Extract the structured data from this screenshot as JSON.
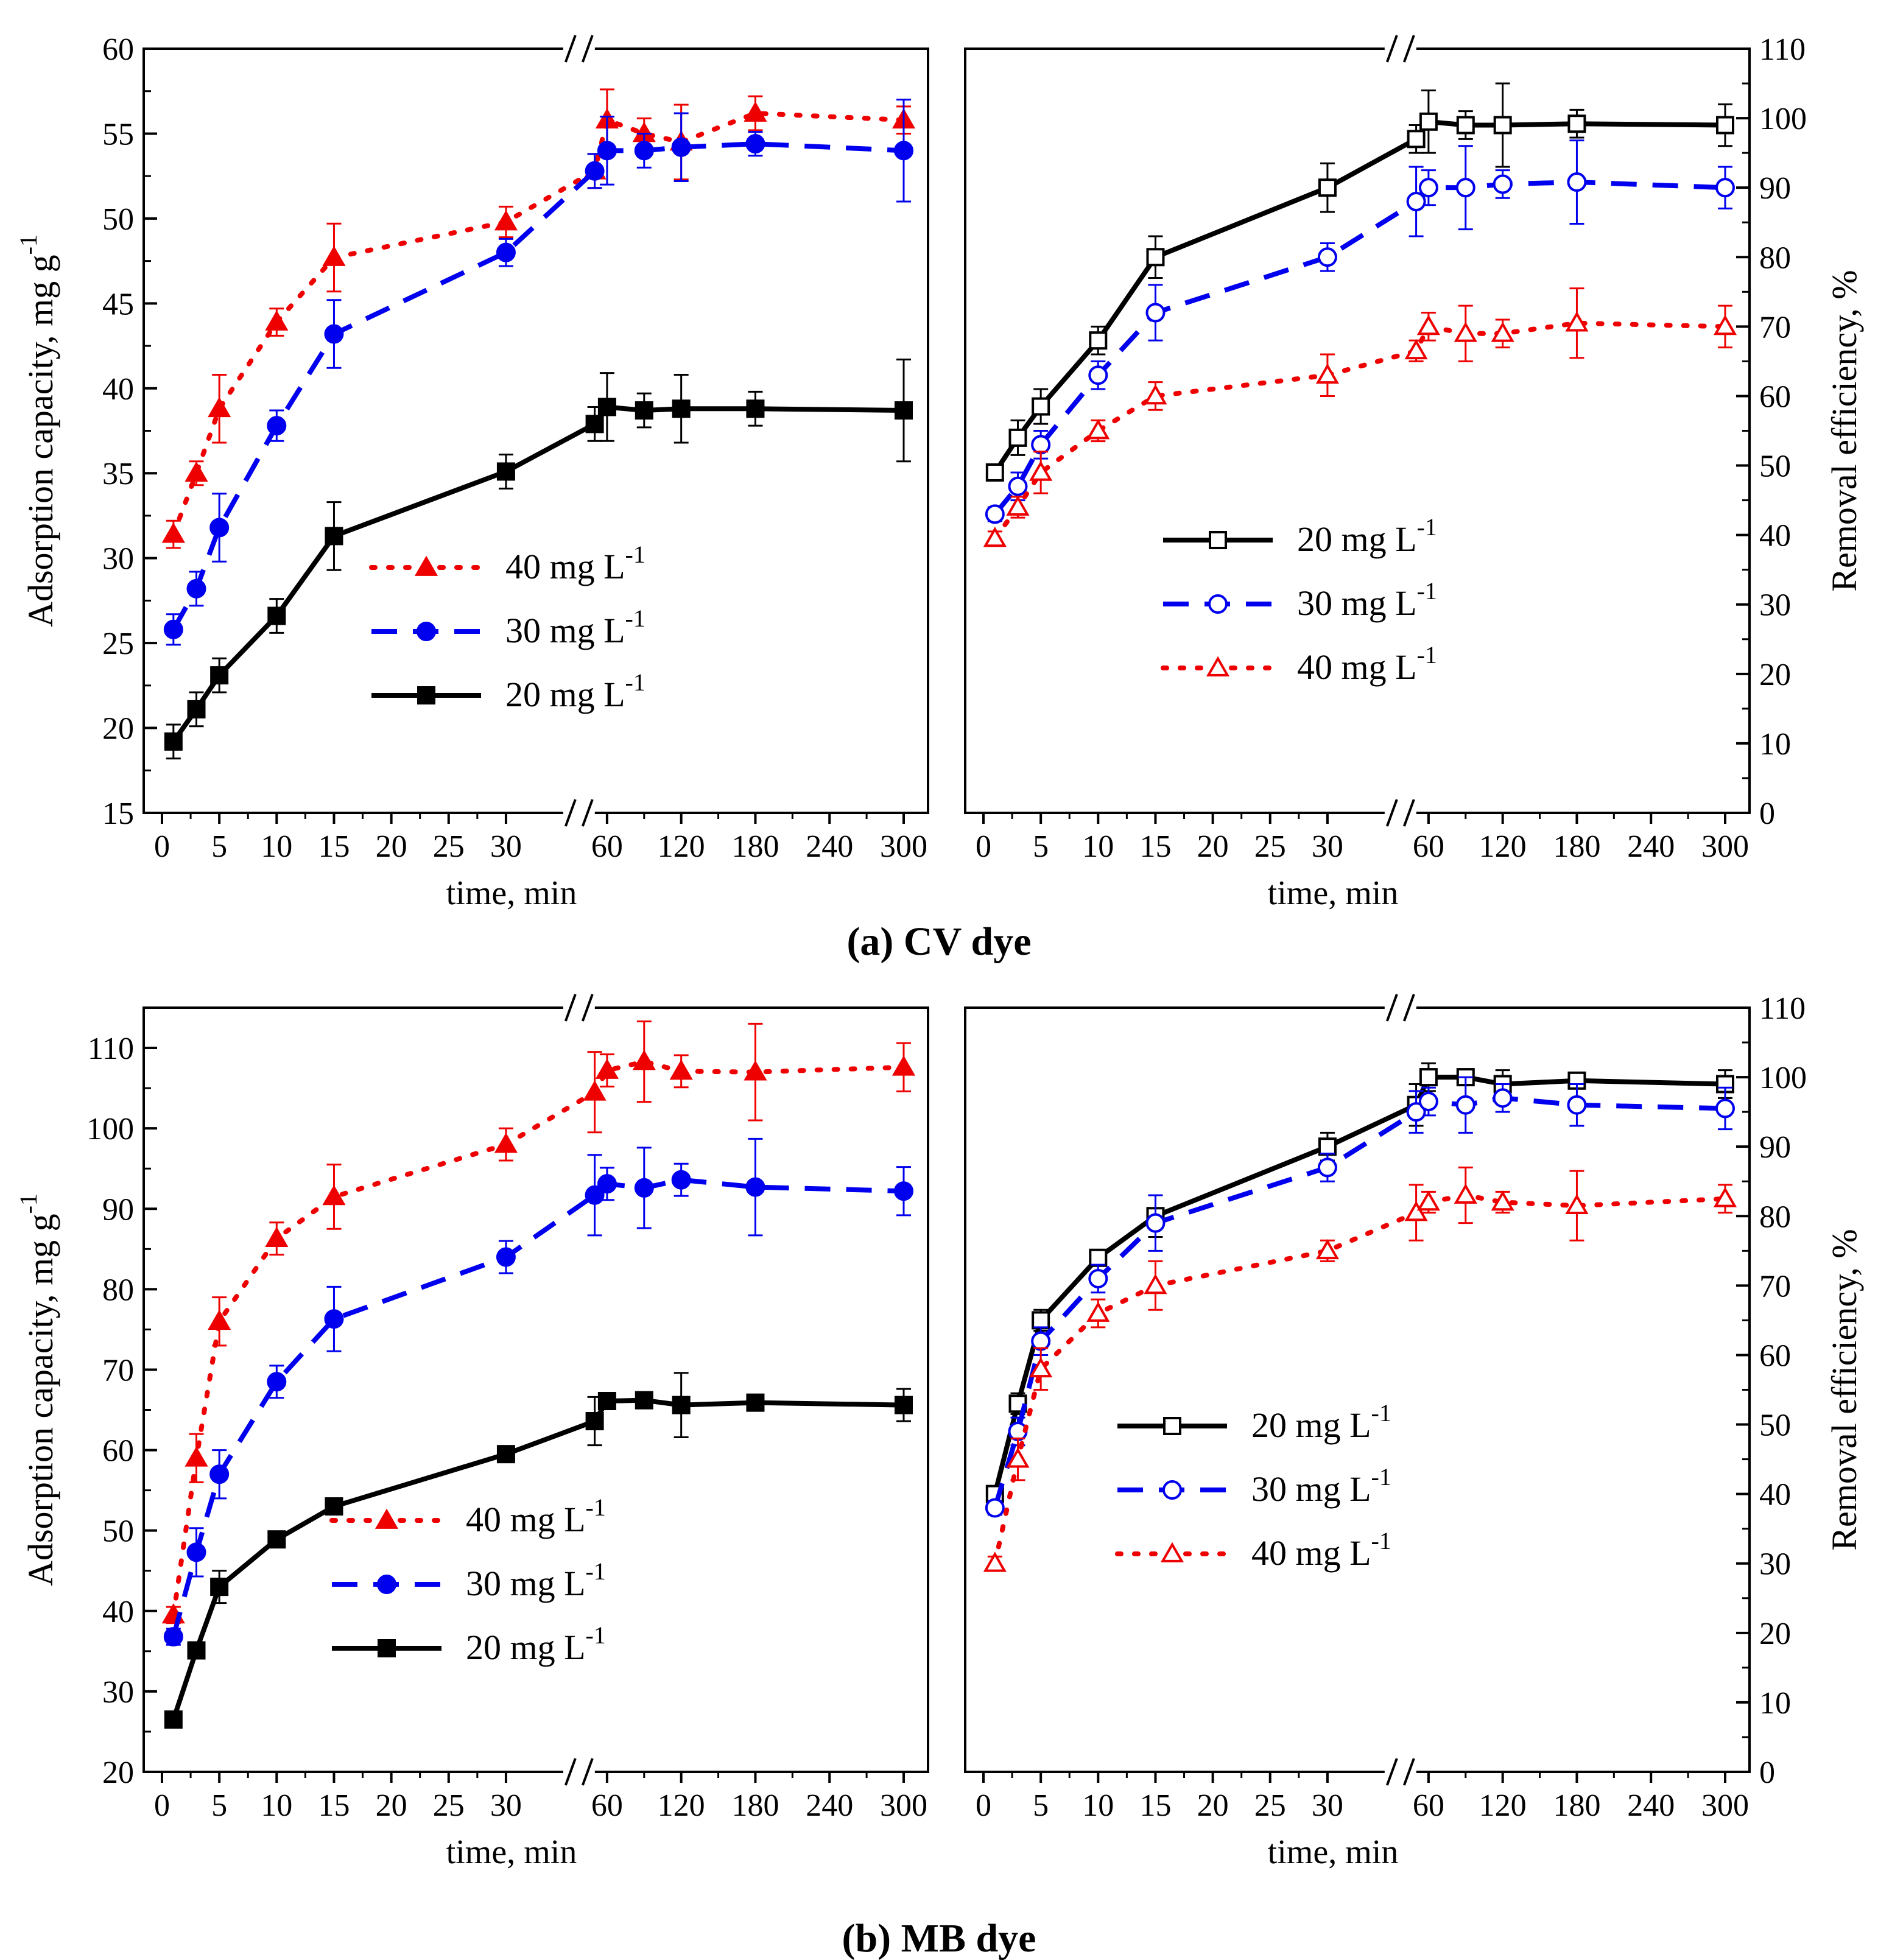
{
  "figure": {
    "caption_a": "(a) CV dye",
    "caption_b": "(b) MB dye"
  },
  "axes": {
    "left_ylabel": "Adsorption capacity, mg g",
    "left_ylabel_sup": "-1",
    "right_ylabel": "Removal efficiency, %",
    "xlabel": "time, min",
    "x_ticks_left_segment": [
      "0",
      "5",
      "10",
      "15",
      "20",
      "25",
      "30"
    ],
    "x_ticks_right_segment": [
      "60",
      "120",
      "180",
      "240",
      "300"
    ]
  },
  "legend": {
    "label_20": "20 mg L",
    "label_30": "30 mg L",
    "label_40": "40 mg L",
    "sup": "-1"
  },
  "colors": {
    "s20": "#000000",
    "s30": "#0000ee",
    "s40": "#ee0000"
  },
  "chart_data": [
    {
      "id": "cv_capacity",
      "type": "line",
      "title": "",
      "xlabel": "time, min",
      "ylabel": "Adsorption capacity, mg g-1",
      "ylim": [
        15,
        60
      ],
      "yticks": [
        15,
        20,
        25,
        30,
        35,
        40,
        45,
        50,
        55,
        60
      ],
      "x_break": [
        35,
        50
      ],
      "x_segments": [
        [
          0,
          35
        ],
        [
          50,
          300
        ]
      ],
      "legend_order": [
        "40 mg L-1",
        "30 mg L-1",
        "20 mg L-1"
      ],
      "legend_placement": "center-right",
      "series": [
        {
          "name": "40 mg L-1",
          "marker": "triangle",
          "filled": true,
          "style": "dotted",
          "color": "#ee0000",
          "x": [
            1,
            3,
            5,
            10,
            15,
            30,
            50,
            60,
            90,
            120,
            180,
            300
          ],
          "y": [
            31.4,
            35.0,
            38.8,
            43.9,
            47.7,
            49.8,
            52.8,
            55.8,
            55.0,
            54.5,
            56.2,
            55.8
          ],
          "err": [
            0.8,
            0.7,
            2.0,
            0.8,
            2.0,
            0.9,
            1.0,
            1.8,
            0.9,
            2.2,
            1.0,
            0.8
          ]
        },
        {
          "name": "30 mg L-1",
          "marker": "circle",
          "filled": true,
          "style": "dashed",
          "color": "#0000ee",
          "x": [
            1,
            3,
            5,
            10,
            15,
            30,
            50,
            60,
            90,
            120,
            180,
            300
          ],
          "y": [
            25.8,
            28.2,
            31.8,
            37.8,
            43.2,
            48.0,
            52.8,
            54.0,
            54.0,
            54.2,
            54.4,
            54.0
          ],
          "err": [
            0.9,
            1.0,
            2.0,
            0.9,
            2.0,
            0.8,
            1.0,
            2.0,
            1.0,
            2.0,
            0.7,
            3.0
          ]
        },
        {
          "name": "20 mg L-1",
          "marker": "square",
          "filled": true,
          "style": "solid",
          "color": "#000000",
          "x": [
            1,
            3,
            5,
            10,
            15,
            30,
            50,
            60,
            90,
            120,
            180,
            300
          ],
          "y": [
            19.2,
            21.1,
            23.1,
            26.6,
            31.3,
            35.1,
            37.9,
            38.9,
            38.7,
            38.8,
            38.8,
            38.7
          ],
          "err": [
            1.0,
            1.0,
            1.0,
            1.0,
            2.0,
            1.0,
            1.0,
            2.0,
            1.0,
            2.0,
            1.0,
            3.0
          ]
        }
      ]
    },
    {
      "id": "cv_removal",
      "type": "line",
      "title": "",
      "xlabel": "time, min",
      "ylabel": "Removal efficiency, %",
      "ylim": [
        0,
        110
      ],
      "yticks": [
        0,
        10,
        20,
        30,
        40,
        50,
        60,
        70,
        80,
        90,
        100,
        110
      ],
      "x_break": [
        35,
        50
      ],
      "x_segments": [
        [
          0,
          35
        ],
        [
          50,
          300
        ]
      ],
      "legend_order": [
        "20 mg L-1",
        "30 mg L-1",
        "40 mg L-1"
      ],
      "legend_placement": "center-right",
      "series": [
        {
          "name": "20 mg L-1",
          "marker": "square",
          "filled": false,
          "style": "solid",
          "color": "#000000",
          "x": [
            1,
            3,
            5,
            10,
            15,
            30,
            50,
            60,
            90,
            120,
            180,
            300
          ],
          "y": [
            49,
            54,
            58.5,
            68,
            80,
            90,
            97,
            99.5,
            99,
            99,
            99.2,
            99
          ],
          "err": [
            1.0,
            2.5,
            2.5,
            2.0,
            3.0,
            3.5,
            2.0,
            4.5,
            2.0,
            6.0,
            2.0,
            3.0
          ]
        },
        {
          "name": "30 mg L-1",
          "marker": "circle",
          "filled": false,
          "style": "dashed",
          "color": "#0000ee",
          "x": [
            1,
            3,
            5,
            10,
            15,
            30,
            50,
            60,
            90,
            120,
            180,
            300
          ],
          "y": [
            43,
            47,
            53,
            63,
            72,
            80,
            88,
            90,
            90,
            90.5,
            90.8,
            90
          ],
          "err": [
            1.0,
            2.0,
            2.0,
            2.0,
            4.0,
            2.0,
            5.0,
            2.5,
            6.0,
            2.0,
            6.0,
            3.0
          ]
        },
        {
          "name": "40 mg L-1",
          "marker": "triangle",
          "filled": false,
          "style": "dotted",
          "color": "#ee0000",
          "x": [
            1,
            3,
            5,
            10,
            15,
            30,
            50,
            60,
            90,
            120,
            180,
            300
          ],
          "y": [
            39.5,
            44,
            49,
            55,
            60,
            63,
            66.5,
            70,
            69,
            69,
            70.5,
            70
          ],
          "err": [
            1.0,
            1.5,
            3.0,
            1.5,
            2.0,
            3.0,
            1.5,
            2.0,
            4.0,
            2.0,
            5.0,
            3.0
          ]
        }
      ]
    },
    {
      "id": "mb_capacity",
      "type": "line",
      "title": "",
      "xlabel": "time, min",
      "ylabel": "Adsorption capacity, mg g-1",
      "ylim": [
        20,
        115
      ],
      "yticks": [
        20,
        30,
        40,
        50,
        60,
        70,
        80,
        90,
        100,
        110
      ],
      "x_break": [
        35,
        50
      ],
      "x_segments": [
        [
          0,
          35
        ],
        [
          50,
          300
        ]
      ],
      "legend_order": [
        "40 mg L-1",
        "30 mg L-1",
        "20 mg L-1"
      ],
      "legend_placement": "center-right",
      "series": [
        {
          "name": "40 mg L-1",
          "marker": "triangle",
          "filled": true,
          "style": "dotted",
          "color": "#ee0000",
          "x": [
            1,
            3,
            5,
            10,
            15,
            30,
            50,
            60,
            90,
            120,
            180,
            300
          ],
          "y": [
            39.5,
            59,
            76,
            86.3,
            91.5,
            98,
            104.5,
            107.2,
            108.3,
            107.1,
            107,
            107.6
          ],
          "err": [
            1.0,
            3.0,
            3.0,
            2.0,
            4.0,
            2.0,
            5.0,
            2.0,
            5.0,
            2.0,
            6.0,
            3.0
          ]
        },
        {
          "name": "30 mg L-1",
          "marker": "circle",
          "filled": true,
          "style": "dashed",
          "color": "#0000ee",
          "x": [
            1,
            3,
            5,
            10,
            15,
            30,
            50,
            60,
            90,
            120,
            180,
            300
          ],
          "y": [
            36.8,
            47.3,
            57,
            68.5,
            76.3,
            84,
            91.7,
            93.1,
            92.6,
            93.6,
            92.7,
            92.2
          ],
          "err": [
            1.0,
            3.0,
            3.0,
            2.0,
            4.0,
            2.0,
            5.0,
            2.0,
            5.0,
            2.0,
            6.0,
            3.0
          ]
        },
        {
          "name": "20 mg L-1",
          "marker": "square",
          "filled": true,
          "style": "solid",
          "color": "#000000",
          "x": [
            1,
            3,
            5,
            10,
            15,
            30,
            50,
            60,
            90,
            120,
            180,
            300
          ],
          "y": [
            26.5,
            35.1,
            43,
            48.9,
            53,
            59.5,
            63.6,
            66.1,
            66.2,
            65.6,
            65.9,
            65.6
          ],
          "err": [
            0.7,
            1.0,
            2.0,
            0.8,
            1.0,
            0.8,
            3.0,
            0.9,
            1.0,
            4.0,
            0.8,
            2.0
          ]
        }
      ]
    },
    {
      "id": "mb_removal",
      "type": "line",
      "title": "",
      "xlabel": "time, min",
      "ylabel": "Removal efficiency, %",
      "ylim": [
        0,
        110
      ],
      "yticks": [
        0,
        10,
        20,
        30,
        40,
        50,
        60,
        70,
        80,
        90,
        100,
        110
      ],
      "x_break": [
        35,
        50
      ],
      "x_segments": [
        [
          0,
          35
        ],
        [
          50,
          300
        ]
      ],
      "legend_order": [
        "20 mg L-1",
        "30 mg L-1",
        "40 mg L-1"
      ],
      "legend_placement": "center-right",
      "series": [
        {
          "name": "20 mg L-1",
          "marker": "square",
          "filled": false,
          "style": "solid",
          "color": "#000000",
          "x": [
            1,
            3,
            5,
            10,
            15,
            30,
            50,
            60,
            90,
            120,
            180,
            300
          ],
          "y": [
            40,
            53,
            65,
            74,
            80,
            90,
            96,
            100,
            100,
            99,
            99.5,
            99
          ],
          "err": [
            1.0,
            1.5,
            1.5,
            1.0,
            3.0,
            2.0,
            3.0,
            2.0,
            1.0,
            2.0,
            1.0,
            2.0
          ]
        },
        {
          "name": "30 mg L-1",
          "marker": "circle",
          "filled": false,
          "style": "dashed",
          "color": "#0000ee",
          "x": [
            1,
            3,
            5,
            10,
            15,
            30,
            50,
            60,
            90,
            120,
            180,
            300
          ],
          "y": [
            38,
            49,
            62,
            71,
            79,
            87,
            95,
            96.5,
            96,
            97,
            96,
            95.5
          ],
          "err": [
            1.0,
            2.0,
            2.0,
            2.0,
            4.0,
            2.0,
            3.0,
            2.0,
            4.0,
            2.0,
            3.0,
            3.0
          ]
        },
        {
          "name": "40 mg L-1",
          "marker": "triangle",
          "filled": false,
          "style": "dotted",
          "color": "#ee0000",
          "x": [
            1,
            3,
            5,
            10,
            15,
            30,
            50,
            60,
            90,
            120,
            180,
            300
          ],
          "y": [
            30,
            45,
            58,
            66,
            70,
            75,
            80.5,
            82,
            83,
            82,
            81.5,
            82.5
          ],
          "err": [
            1.0,
            3.0,
            3.0,
            2.0,
            3.5,
            1.5,
            4.0,
            1.5,
            4.0,
            1.5,
            5.0,
            2.0
          ]
        }
      ]
    }
  ]
}
